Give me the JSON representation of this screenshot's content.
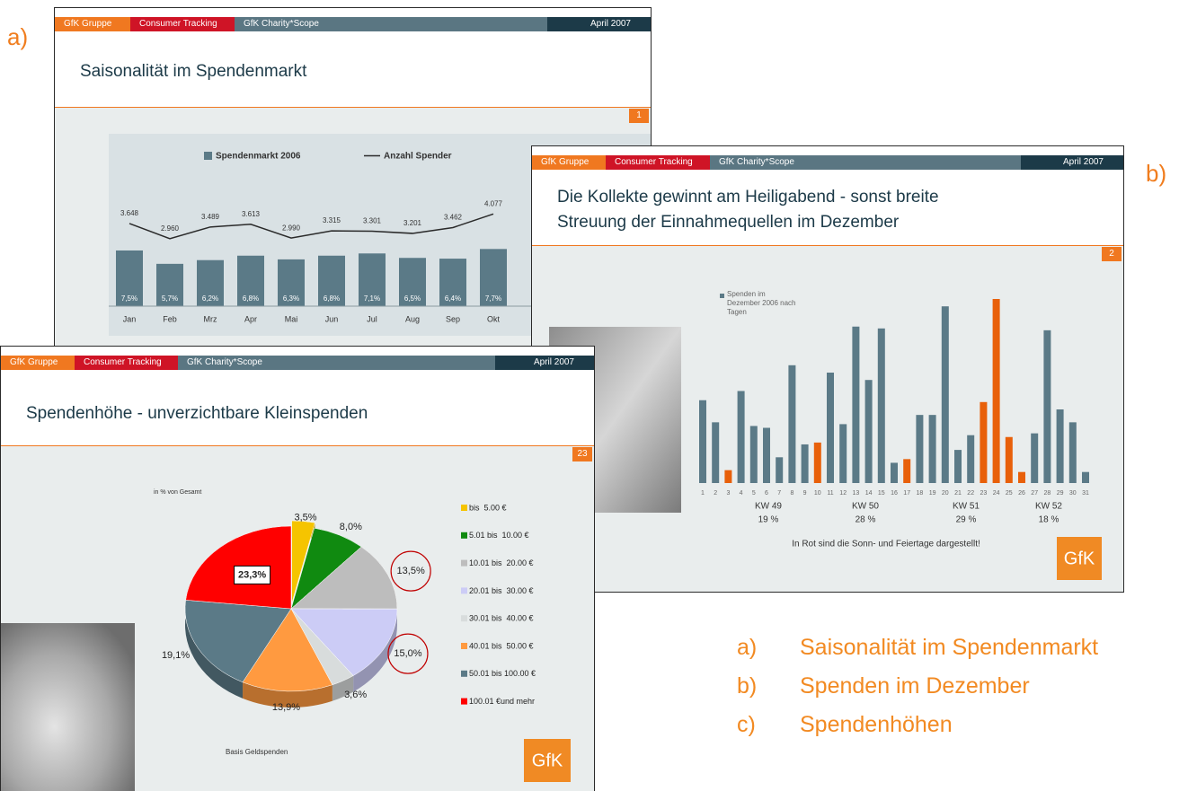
{
  "markers": [
    "a)",
    "b)"
  ],
  "logo": "GfK",
  "slides": [
    {
      "header": {
        "group": "GfK Gruppe",
        "tracking": "Consumer Tracking",
        "product": "GfK Charity*Scope",
        "date": "April 2007"
      },
      "title": [
        "Saisonalität im Spendenmarkt"
      ],
      "page": "1"
    },
    {
      "header": {
        "group": "GfK Gruppe",
        "tracking": "Consumer Tracking",
        "product": "GfK Charity*Scope",
        "date": "April 2007"
      },
      "title": [
        "Die Kollekte gewinnt am Heiligabend - sonst breite",
        "Streuung der Einnahmequellen im Dezember"
      ],
      "page": "2"
    },
    {
      "header": {
        "group": "GfK Gruppe",
        "tracking": "Consumer Tracking",
        "product": "GfK Charity*Scope",
        "date": "April 2007"
      },
      "title": [
        "Spendenhöhe - unverzichtbare Kleinspenden"
      ],
      "page": "23"
    }
  ],
  "chart_data": [
    {
      "type": "bar-line",
      "categories": [
        "Jan",
        "Feb",
        "Mrz",
        "Apr",
        "Mai",
        "Jun",
        "Jul",
        "Aug",
        "Sep",
        "Okt"
      ],
      "series": [
        {
          "name": "Spendenmarkt 2006",
          "type": "bar",
          "color": "#5b7a87",
          "values": [
            7.5,
            5.7,
            6.2,
            6.8,
            6.3,
            6.8,
            7.1,
            6.5,
            6.4,
            7.7
          ],
          "value_labels": [
            "7,5%",
            "5,7%",
            "6,2%",
            "6,8%",
            "6,3%",
            "6,8%",
            "7,1%",
            "6,5%",
            "6,4%",
            "7,7%"
          ]
        },
        {
          "name": "Anzahl Spender",
          "type": "line",
          "color": "#2a2a2a",
          "values": [
            3648,
            2960,
            3489,
            3613,
            2990,
            3315,
            3301,
            3201,
            3462,
            4077
          ],
          "value_labels": [
            "3.648",
            "2.960",
            "3.489",
            "3.613",
            "2.990",
            "3.315",
            "3.301",
            "3.201",
            "3.462",
            "4.077"
          ]
        }
      ]
    },
    {
      "type": "bar",
      "categories": [
        "1",
        "2",
        "3",
        "4",
        "5",
        "6",
        "7",
        "8",
        "9",
        "10",
        "11",
        "12",
        "13",
        "14",
        "15",
        "16",
        "17",
        "18",
        "19",
        "20",
        "21",
        "22",
        "23",
        "24",
        "25",
        "26",
        "27",
        "28",
        "29",
        "30",
        "31"
      ],
      "series": [
        {
          "name": "Spenden im Dezember 2006 nach Tagen",
          "color": "#5b7a87",
          "values": [
            4.5,
            3.3,
            0.7,
            5,
            3.1,
            3,
            1.4,
            6.4,
            2.1,
            2.2,
            6,
            3.2,
            8.5,
            5.6,
            8.4,
            1.1,
            1.3,
            3.7,
            3.7,
            9.6,
            1.8,
            2.6,
            4.4,
            10,
            2.5,
            0.6,
            2.7,
            8.3,
            4,
            3.3,
            0.6
          ]
        }
      ],
      "colors": [
        "#5b7a87",
        "#5b7a87",
        "#e8600a",
        "#5b7a87",
        "#5b7a87",
        "#5b7a87",
        "#5b7a87",
        "#5b7a87",
        "#5b7a87",
        "#e8600a",
        "#5b7a87",
        "#5b7a87",
        "#5b7a87",
        "#5b7a87",
        "#5b7a87",
        "#5b7a87",
        "#e8600a",
        "#5b7a87",
        "#5b7a87",
        "#5b7a87",
        "#5b7a87",
        "#5b7a87",
        "#e8600a",
        "#e8600a",
        "#e8600a",
        "#e8600a",
        "#5b7a87",
        "#5b7a87",
        "#5b7a87",
        "#5b7a87",
        "#5b7a87"
      ],
      "weeks": [
        [
          "KW 49",
          "19 %"
        ],
        [
          "KW 50",
          "28 %"
        ],
        [
          "KW 51",
          "29 %"
        ],
        [
          "KW 52",
          "18 %"
        ]
      ],
      "note": "In Rot sind die Sonn- und Feiertage dargestellt!"
    },
    {
      "type": "pie",
      "note": "in % von Gesamt",
      "footer": "Basis Geldspenden",
      "categories": [
        "bis  5.00 €",
        "5.01 bis  10.00 €",
        "10.01 bis  20.00 €",
        "20.01 bis  30.00 €",
        "30.01 bis  40.00 €",
        "40.01 bis  50.00 €",
        "50.01 bis 100.00 €",
        "100.01 €und mehr"
      ],
      "values": [
        3.5,
        8.0,
        13.5,
        15.0,
        3.6,
        13.9,
        19.1,
        23.3
      ],
      "value_labels": [
        "3,5%",
        "8,0%",
        "13,5%",
        "15,0%",
        "3,6%",
        "13,9%",
        "19,1%",
        "23,3%"
      ],
      "colors": [
        "#f5c400",
        "#108a10",
        "#bdbdbd",
        "#ccccf6",
        "#d8dcdc",
        "#ff9a40",
        "#5b7a87",
        "#ff0000"
      ],
      "explode": [
        0
      ],
      "highlight": [
        2,
        3
      ]
    }
  ],
  "captions": [
    {
      "letter": "a)",
      "text": "Saisonalität im Spendenmarkt"
    },
    {
      "letter": "b)",
      "text": "Spenden im Dezember"
    },
    {
      "letter": "c)",
      "text": "Spendenhöhen"
    }
  ]
}
